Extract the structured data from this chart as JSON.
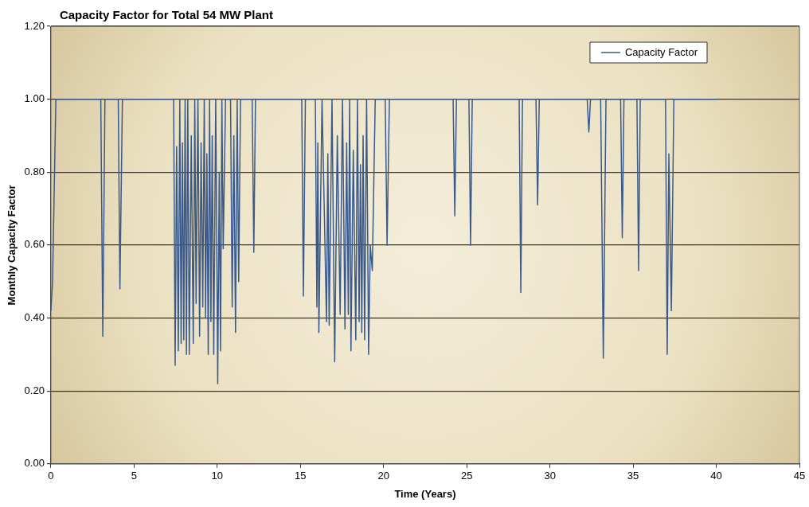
{
  "chart_data": {
    "type": "line",
    "title": "Capacity Factor for Total 54 MW Plant",
    "xlabel": "Time (Years)",
    "ylabel": "Monthly Capacity Factor",
    "series": [
      {
        "name": "Capacity Factor",
        "color": "#3a5a8c",
        "x": [
          0,
          0.1,
          0.3,
          3.0,
          3.12,
          3.25,
          4.05,
          4.15,
          4.3,
          7.38,
          7.47,
          7.56,
          7.66,
          7.75,
          7.83,
          7.91,
          7.99,
          8.07,
          8.15,
          8.23,
          8.32,
          8.44,
          8.56,
          8.65,
          8.73,
          8.84,
          8.94,
          9.03,
          9.13,
          9.22,
          9.3,
          9.38,
          9.46,
          9.54,
          9.62,
          9.7,
          9.79,
          9.91,
          10.03,
          10.12,
          10.2,
          10.28,
          10.36,
          10.5,
          10.8,
          10.9,
          11.0,
          11.1,
          11.2,
          11.29,
          11.4,
          12.1,
          12.2,
          12.3,
          15.08,
          15.18,
          15.3,
          15.9,
          15.99,
          16.05,
          16.11,
          16.3,
          16.57,
          16.65,
          16.73,
          16.9,
          17.06,
          17.22,
          17.39,
          17.53,
          17.68,
          17.78,
          17.88,
          17.96,
          18.04,
          18.18,
          18.33,
          18.43,
          18.53,
          18.61,
          18.69,
          18.77,
          18.86,
          18.98,
          19.1,
          19.2,
          19.32,
          19.5,
          20.1,
          20.21,
          20.35,
          24.18,
          24.28,
          24.38,
          25.13,
          25.23,
          25.33,
          28.15,
          28.25,
          28.35,
          29.16,
          29.26,
          29.36,
          32.24,
          32.34,
          32.44,
          33.05,
          33.21,
          33.37,
          34.25,
          34.35,
          34.45,
          35.23,
          35.33,
          35.43,
          36.95,
          37.05,
          37.15,
          37.3,
          37.45,
          40
        ],
        "values": [
          0.42,
          0.5,
          1.0,
          1.0,
          0.35,
          1.0,
          1.0,
          0.48,
          1.0,
          1.0,
          0.27,
          0.87,
          0.31,
          1.0,
          0.33,
          0.88,
          0.34,
          1.0,
          0.3,
          1.0,
          0.3,
          0.9,
          0.33,
          1.0,
          0.44,
          1.0,
          0.35,
          0.88,
          0.43,
          1.0,
          0.4,
          0.85,
          0.3,
          1.0,
          0.39,
          0.9,
          0.3,
          1.0,
          0.22,
          0.8,
          0.31,
          1.0,
          0.59,
          1.0,
          1.0,
          0.43,
          0.9,
          0.36,
          1.0,
          0.5,
          1.0,
          1.0,
          0.58,
          1.0,
          1.0,
          0.46,
          1.0,
          1.0,
          0.43,
          0.88,
          0.36,
          1.0,
          0.39,
          0.85,
          0.38,
          1.0,
          0.28,
          0.9,
          0.41,
          1.0,
          0.37,
          0.88,
          0.41,
          1.0,
          0.31,
          0.86,
          0.34,
          1.0,
          0.39,
          0.82,
          0.36,
          0.9,
          0.34,
          1.0,
          0.3,
          0.6,
          0.53,
          1.0,
          1.0,
          0.6,
          1.0,
          1.0,
          0.68,
          1.0,
          1.0,
          0.6,
          1.0,
          1.0,
          0.47,
          1.0,
          1.0,
          0.71,
          1.0,
          1.0,
          0.91,
          1.0,
          1.0,
          0.29,
          1.0,
          1.0,
          0.62,
          1.0,
          1.0,
          0.53,
          1.0,
          1.0,
          0.3,
          0.85,
          0.42,
          1.0,
          1.0
        ]
      }
    ],
    "xlim": [
      0,
      45
    ],
    "xticks": [
      0,
      5,
      10,
      15,
      20,
      25,
      30,
      35,
      40,
      45
    ],
    "ylim": [
      0,
      1.2
    ],
    "yticks": [
      {
        "value": 0,
        "label": "0.00"
      },
      {
        "value": 0.2,
        "label": "0.20"
      },
      {
        "value": 0.4,
        "label": "0.40"
      },
      {
        "value": 0.6,
        "label": "0.60"
      },
      {
        "value": 0.8,
        "label": "0.80"
      },
      {
        "value": 1.0,
        "label": "1.00"
      },
      {
        "value": 1.2,
        "label": "1.20"
      }
    ],
    "grid": "y",
    "legend": "top right",
    "marker": "none",
    "line_style": "solid"
  }
}
